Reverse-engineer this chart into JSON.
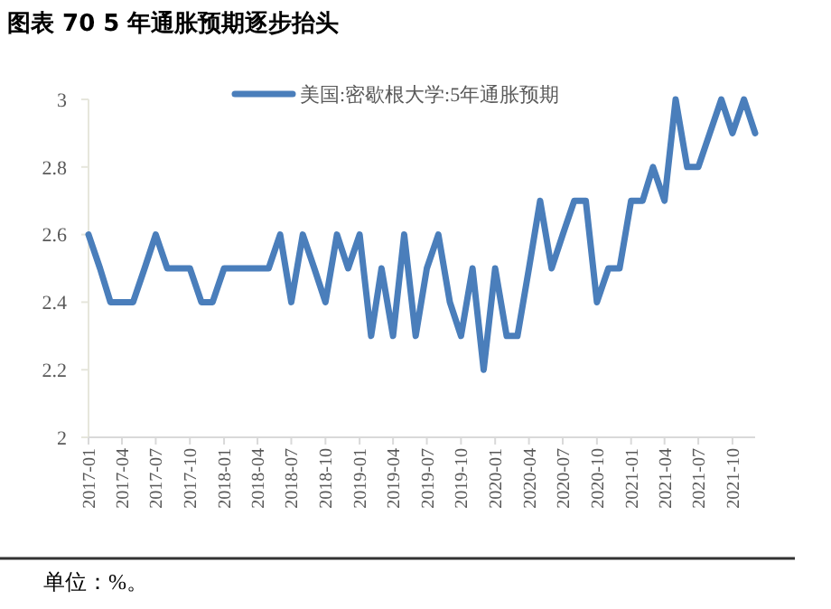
{
  "chart_data": {
    "type": "line",
    "title": "图表 70 5 年通胀预期逐步抬头",
    "annotations": [
      "单位：%。"
    ],
    "x": [
      "2017-01",
      "2017-02",
      "2017-03",
      "2017-04",
      "2017-05",
      "2017-06",
      "2017-07",
      "2017-08",
      "2017-09",
      "2017-10",
      "2017-11",
      "2017-12",
      "2018-01",
      "2018-02",
      "2018-03",
      "2018-04",
      "2018-05",
      "2018-06",
      "2018-07",
      "2018-08",
      "2018-09",
      "2018-10",
      "2018-11",
      "2018-12",
      "2019-01",
      "2019-02",
      "2019-03",
      "2019-04",
      "2019-05",
      "2019-06",
      "2019-07",
      "2019-08",
      "2019-09",
      "2019-10",
      "2019-11",
      "2019-12",
      "2020-01",
      "2020-02",
      "2020-03",
      "2020-04",
      "2020-05",
      "2020-06",
      "2020-07",
      "2020-08",
      "2020-09",
      "2020-10",
      "2020-11",
      "2020-12",
      "2021-01",
      "2021-02",
      "2021-03",
      "2021-04",
      "2021-05",
      "2021-06",
      "2021-07",
      "2021-08",
      "2021-09",
      "2021-10",
      "2021-11",
      "2021-12"
    ],
    "series": [
      {
        "name": "美国:密歇根大学:5年通胀预期",
        "color": "#4a7ebb",
        "values": [
          2.6,
          2.5,
          2.4,
          2.4,
          2.4,
          2.5,
          2.6,
          2.5,
          2.5,
          2.5,
          2.4,
          2.4,
          2.5,
          2.5,
          2.5,
          2.5,
          2.5,
          2.6,
          2.4,
          2.6,
          2.5,
          2.4,
          2.6,
          2.5,
          2.6,
          2.3,
          2.5,
          2.3,
          2.6,
          2.3,
          2.5,
          2.6,
          2.4,
          2.3,
          2.5,
          2.2,
          2.5,
          2.3,
          2.3,
          2.5,
          2.7,
          2.5,
          2.6,
          2.7,
          2.7,
          2.4,
          2.5,
          2.5,
          2.7,
          2.7,
          2.8,
          2.7,
          3.0,
          2.8,
          2.8,
          2.9,
          3.0,
          2.9,
          3.0,
          2.9
        ]
      }
    ],
    "xlim": [
      "2017-01",
      "2021-12"
    ],
    "xticks": [
      "2017-01",
      "2017-04",
      "2017-07",
      "2017-10",
      "2018-01",
      "2018-04",
      "2018-07",
      "2018-10",
      "2019-01",
      "2019-04",
      "2019-07",
      "2019-10",
      "2020-01",
      "2020-04",
      "2020-07",
      "2020-10",
      "2021-01",
      "2021-04",
      "2021-07",
      "2021-10"
    ],
    "ylim": [
      2,
      3
    ],
    "yticks": [
      2,
      2.2,
      2.4,
      2.6,
      2.8,
      3
    ],
    "grid": false,
    "legend": "top",
    "marker": "none",
    "line_style": "solid"
  }
}
